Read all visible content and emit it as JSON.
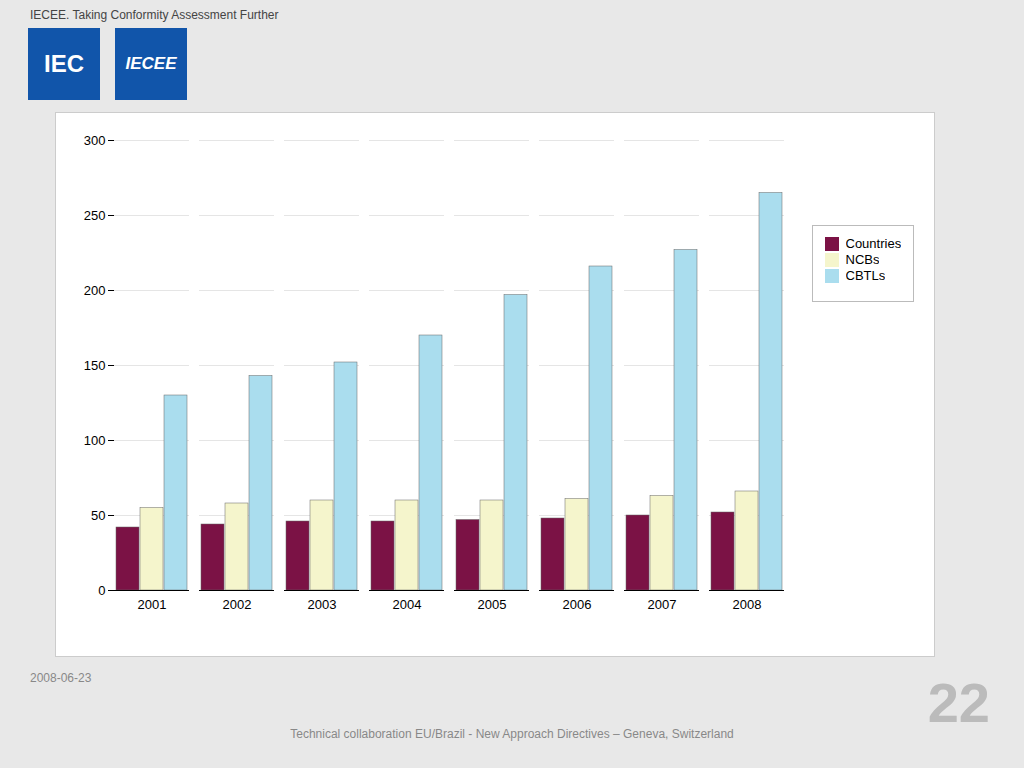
{
  "chart_data": {
    "type": "bar",
    "title": "IECEE. Taking Conformity Assessment Further",
    "annotations": [
      "IEC",
      "IECEE",
      "2008-06-23",
      "Technical collaboration EU/Brazil - New Approach Directives – Geneva, Switzerland",
      "22"
    ],
    "categories": [
      "2001",
      "2002",
      "2003",
      "2004",
      "2005",
      "2006",
      "2007",
      "2008"
    ],
    "series": [
      {
        "name": "Countries",
        "color": "#7B1245",
        "values": [
          42,
          44,
          46,
          46,
          47,
          48,
          50,
          52
        ]
      },
      {
        "name": "NCBs",
        "color": "#F5F5CC",
        "values": [
          55,
          58,
          60,
          60,
          60,
          61,
          63,
          66
        ]
      },
      {
        "name": "CBTLs",
        "color": "#AADDEE",
        "values": [
          130,
          143,
          152,
          170,
          197,
          216,
          227,
          265
        ]
      }
    ],
    "ylim": [
      0,
      300
    ],
    "yticks": [
      0,
      50,
      100,
      150,
      200,
      250,
      300
    ],
    "grid": true,
    "legend": "right"
  }
}
